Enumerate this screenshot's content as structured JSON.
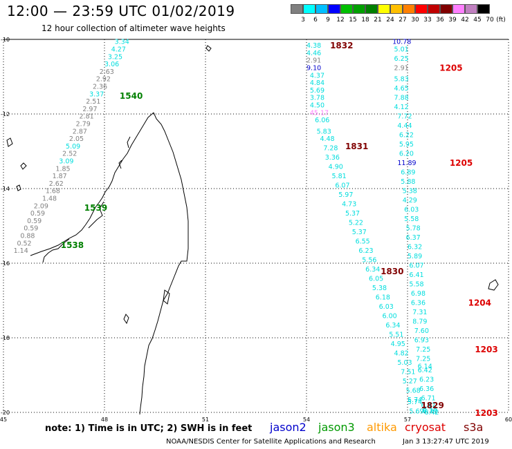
{
  "header": {
    "title": "12:00 — 23:59 UTC 01/02/2019",
    "subtitle": "12 hour collection of altimeter wave heights"
  },
  "scale": {
    "unit_label": "(ft)",
    "swatches": [
      {
        "label": "3",
        "color": "#808080"
      },
      {
        "label": "6",
        "color": "#00ffff"
      },
      {
        "label": "9",
        "color": "#00bfff"
      },
      {
        "label": "12",
        "color": "#0000ff"
      },
      {
        "label": "15",
        "color": "#00c000"
      },
      {
        "label": "18",
        "color": "#00a000"
      },
      {
        "label": "21",
        "color": "#008000"
      },
      {
        "label": "24",
        "color": "#ffff00"
      },
      {
        "label": "27",
        "color": "#ffc000"
      },
      {
        "label": "30",
        "color": "#ff8000"
      },
      {
        "label": "33",
        "color": "#ff0000"
      },
      {
        "label": "36",
        "color": "#c00000"
      },
      {
        "label": "39",
        "color": "#800000"
      },
      {
        "label": "42",
        "color": "#ff80ff"
      },
      {
        "label": "45",
        "color": "#c080c0"
      },
      {
        "label": "70",
        "color": "#000000"
      }
    ]
  },
  "map": {
    "lon_labels": [
      "45",
      "48",
      "51",
      "54",
      "57",
      "60"
    ],
    "lat_labels": [
      "-10",
      "-12",
      "-14",
      "-16",
      "-18",
      "-20"
    ],
    "passes": [
      {
        "satellite": "jason3",
        "time_labels": [
          {
            "text": "1540",
            "lon": 48.45,
            "lat": -11.5
          },
          {
            "text": "1539",
            "lon": 47.4,
            "lat": -14.5
          },
          {
            "text": "1538",
            "lon": 46.7,
            "lat": -15.5
          }
        ],
        "obs": [
          {
            "v": "3.34",
            "c": "#00dddd",
            "lon": 48.3,
            "lat": -10.05
          },
          {
            "v": "4.27",
            "c": "#00dddd",
            "lon": 48.2,
            "lat": -10.25
          },
          {
            "v": "3.25",
            "c": "#00dddd",
            "lon": 48.1,
            "lat": -10.45
          },
          {
            "v": "3.06",
            "c": "#00dddd",
            "lon": 48.0,
            "lat": -10.65
          },
          {
            "v": "2.63",
            "c": "#808080",
            "lon": 47.85,
            "lat": -10.85
          },
          {
            "v": "2.92",
            "c": "#808080",
            "lon": 47.75,
            "lat": -11.05
          },
          {
            "v": "2.36",
            "c": "#808080",
            "lon": 47.65,
            "lat": -11.25
          },
          {
            "v": "3.37",
            "c": "#00dddd",
            "lon": 47.55,
            "lat": -11.45
          },
          {
            "v": "2.51",
            "c": "#808080",
            "lon": 47.45,
            "lat": -11.65
          },
          {
            "v": "2.97",
            "c": "#808080",
            "lon": 47.35,
            "lat": -11.85
          },
          {
            "v": "2.81",
            "c": "#808080",
            "lon": 47.25,
            "lat": -12.05
          },
          {
            "v": "2.79",
            "c": "#808080",
            "lon": 47.15,
            "lat": -12.25
          },
          {
            "v": "2.87",
            "c": "#808080",
            "lon": 47.05,
            "lat": -12.45
          },
          {
            "v": "2.05",
            "c": "#808080",
            "lon": 46.95,
            "lat": -12.65
          },
          {
            "v": "5.09",
            "c": "#00dddd",
            "lon": 46.85,
            "lat": -12.85
          },
          {
            "v": "2.52",
            "c": "#808080",
            "lon": 46.75,
            "lat": -13.05
          },
          {
            "v": "3.09",
            "c": "#00dddd",
            "lon": 46.65,
            "lat": -13.25
          },
          {
            "v": "1.85",
            "c": "#808080",
            "lon": 46.55,
            "lat": -13.45
          },
          {
            "v": "1.87",
            "c": "#808080",
            "lon": 46.45,
            "lat": -13.65
          },
          {
            "v": "2.62",
            "c": "#808080",
            "lon": 46.35,
            "lat": -13.85
          },
          {
            "v": "1.68",
            "c": "#808080",
            "lon": 46.25,
            "lat": -14.05
          },
          {
            "v": "1.48",
            "c": "#808080",
            "lon": 46.15,
            "lat": -14.25
          },
          {
            "v": "2.09",
            "c": "#808080",
            "lon": 45.9,
            "lat": -14.45
          },
          {
            "v": "0.59",
            "c": "#808080",
            "lon": 45.8,
            "lat": -14.65
          },
          {
            "v": "0.59",
            "c": "#808080",
            "lon": 45.7,
            "lat": -14.85
          },
          {
            "v": "0.59",
            "c": "#808080",
            "lon": 45.6,
            "lat": -15.05
          },
          {
            "v": "0.88",
            "c": "#808080",
            "lon": 45.5,
            "lat": -15.25
          },
          {
            "v": "0.52",
            "c": "#808080",
            "lon": 45.4,
            "lat": -15.45
          },
          {
            "v": "1.14",
            "c": "#808080",
            "lon": 45.3,
            "lat": -15.65
          }
        ]
      },
      {
        "satellite": "cryosat",
        "time_labels": [
          {
            "text": "1832",
            "lon": 54.7,
            "lat": -10.15
          },
          {
            "text": "1831",
            "lon": 55.15,
            "lat": -12.85
          },
          {
            "text": "1830",
            "lon": 56.2,
            "lat": -16.2
          },
          {
            "text": "1829",
            "lon": 57.4,
            "lat": -19.8
          }
        ],
        "obs": [
          {
            "v": "4.38",
            "c": "#00dddd",
            "lon": 54.0,
            "lat": -10.15
          },
          {
            "v": "4.46",
            "c": "#00dddd",
            "lon": 54.0,
            "lat": -10.35
          },
          {
            "v": "2.91",
            "c": "#808080",
            "lon": 54.0,
            "lat": -10.55
          },
          {
            "v": "9.10",
            "c": "#0000cc",
            "lon": 54.0,
            "lat": -10.75
          },
          {
            "v": "4.37",
            "c": "#00dddd",
            "lon": 54.1,
            "lat": -10.95
          },
          {
            "v": "4.84",
            "c": "#00dddd",
            "lon": 54.1,
            "lat": -11.15
          },
          {
            "v": "5.69",
            "c": "#00dddd",
            "lon": 54.1,
            "lat": -11.35
          },
          {
            "v": "3.78",
            "c": "#00dddd",
            "lon": 54.1,
            "lat": -11.55
          },
          {
            "v": "4.50",
            "c": "#00dddd",
            "lon": 54.1,
            "lat": -11.75
          },
          {
            "v": "45.17",
            "c": "#ff80ff",
            "lon": 54.1,
            "lat": -11.95
          },
          {
            "v": "6.06",
            "c": "#00dddd",
            "lon": 54.25,
            "lat": -12.15
          },
          {
            "v": "5.83",
            "c": "#00dddd",
            "lon": 54.3,
            "lat": -12.45
          },
          {
            "v": "4.48",
            "c": "#00dddd",
            "lon": 54.4,
            "lat": -12.65
          },
          {
            "v": "7.28",
            "c": "#00dddd",
            "lon": 54.5,
            "lat": -12.9
          },
          {
            "v": "3.36",
            "c": "#00dddd",
            "lon": 54.55,
            "lat": -13.15
          },
          {
            "v": "4.90",
            "c": "#00dddd",
            "lon": 54.65,
            "lat": -13.4
          },
          {
            "v": "5.81",
            "c": "#00dddd",
            "lon": 54.75,
            "lat": -13.65
          },
          {
            "v": "6.07",
            "c": "#00dddd",
            "lon": 54.85,
            "lat": -13.9
          },
          {
            "v": "5.97",
            "c": "#00dddd",
            "lon": 54.95,
            "lat": -14.15
          },
          {
            "v": "4.73",
            "c": "#00dddd",
            "lon": 55.05,
            "lat": -14.4
          },
          {
            "v": "5.37",
            "c": "#00dddd",
            "lon": 55.15,
            "lat": -14.65
          },
          {
            "v": "5.22",
            "c": "#00dddd",
            "lon": 55.25,
            "lat": -14.9
          },
          {
            "v": "5.37",
            "c": "#00dddd",
            "lon": 55.35,
            "lat": -15.15
          },
          {
            "v": "6.55",
            "c": "#00dddd",
            "lon": 55.45,
            "lat": -15.4
          },
          {
            "v": "6.23",
            "c": "#00dddd",
            "lon": 55.55,
            "lat": -15.65
          },
          {
            "v": "5.56",
            "c": "#00dddd",
            "lon": 55.65,
            "lat": -15.9
          },
          {
            "v": "6.34",
            "c": "#00dddd",
            "lon": 55.75,
            "lat": -16.15
          },
          {
            "v": "6.05",
            "c": "#00dddd",
            "lon": 55.85,
            "lat": -16.4
          },
          {
            "v": "5.38",
            "c": "#00dddd",
            "lon": 55.95,
            "lat": -16.65
          },
          {
            "v": "6.18",
            "c": "#00dddd",
            "lon": 56.05,
            "lat": -16.9
          },
          {
            "v": "6.03",
            "c": "#00dddd",
            "lon": 56.15,
            "lat": -17.15
          },
          {
            "v": "6.00",
            "c": "#00dddd",
            "lon": 56.25,
            "lat": -17.4
          },
          {
            "v": "6.34",
            "c": "#00dddd",
            "lon": 56.35,
            "lat": -17.65
          },
          {
            "v": "5.51",
            "c": "#00dddd",
            "lon": 56.45,
            "lat": -17.9
          },
          {
            "v": "4.95",
            "c": "#00dddd",
            "lon": 56.5,
            "lat": -18.15
          },
          {
            "v": "4.82",
            "c": "#00dddd",
            "lon": 56.6,
            "lat": -18.4
          },
          {
            "v": "5.03",
            "c": "#00dddd",
            "lon": 56.7,
            "lat": -18.65
          },
          {
            "v": "7.51",
            "c": "#00dddd",
            "lon": 56.8,
            "lat": -18.9
          },
          {
            "v": "5.27",
            "c": "#00dddd",
            "lon": 56.85,
            "lat": -19.15
          },
          {
            "v": "5.68",
            "c": "#00dddd",
            "lon": 56.95,
            "lat": -19.4
          },
          {
            "v": "5.74",
            "c": "#00dddd",
            "lon": 57.0,
            "lat": -19.65
          },
          {
            "v": "5.74",
            "c": "#00dddd",
            "lon": 57.0,
            "lat": -19.7
          },
          {
            "v": "5.69",
            "c": "#00dddd",
            "lon": 57.05,
            "lat": -19.95
          }
        ]
      },
      {
        "satellite": "s3a",
        "time_labels": [
          {
            "text": "1205",
            "lon": 57.95,
            "lat": -10.75
          },
          {
            "text": "1205",
            "lon": 58.25,
            "lat": -13.3
          },
          {
            "text": "1204",
            "lon": 58.8,
            "lat": -17.05
          },
          {
            "text": "1203",
            "lon": 59.0,
            "lat": -18.3
          },
          {
            "text": "1203",
            "lon": 59.0,
            "lat": -20.0
          }
        ],
        "obs": [
          {
            "v": "10.78",
            "c": "#0000cc",
            "lon": 56.55,
            "lat": -10.05
          },
          {
            "v": "5.01",
            "c": "#00dddd",
            "lon": 56.6,
            "lat": -10.25
          },
          {
            "v": "6.25",
            "c": "#00dddd",
            "lon": 56.6,
            "lat": -10.5
          },
          {
            "v": "2.91",
            "c": "#808080",
            "lon": 56.6,
            "lat": -10.75
          },
          {
            "v": "5.83",
            "c": "#00dddd",
            "lon": 56.6,
            "lat": -11.05
          },
          {
            "v": "4.65",
            "c": "#00dddd",
            "lon": 56.6,
            "lat": -11.3
          },
          {
            "v": "7.88",
            "c": "#00dddd",
            "lon": 56.6,
            "lat": -11.55
          },
          {
            "v": "4.12",
            "c": "#00dddd",
            "lon": 56.6,
            "lat": -11.8
          },
          {
            "v": "7.72",
            "c": "#00dddd",
            "lon": 56.7,
            "lat": -12.05
          },
          {
            "v": "4.44",
            "c": "#00dddd",
            "lon": 56.7,
            "lat": -12.3
          },
          {
            "v": "6.22",
            "c": "#00dddd",
            "lon": 56.75,
            "lat": -12.55
          },
          {
            "v": "5.95",
            "c": "#00dddd",
            "lon": 56.75,
            "lat": -12.8
          },
          {
            "v": "6.20",
            "c": "#00dddd",
            "lon": 56.75,
            "lat": -13.05
          },
          {
            "v": "11.89",
            "c": "#0000cc",
            "lon": 56.7,
            "lat": -13.3
          },
          {
            "v": "6.89",
            "c": "#00dddd",
            "lon": 56.8,
            "lat": -13.55
          },
          {
            "v": "5.88",
            "c": "#00dddd",
            "lon": 56.8,
            "lat": -13.8
          },
          {
            "v": "5.38",
            "c": "#00dddd",
            "lon": 56.85,
            "lat": -14.05
          },
          {
            "v": "4.29",
            "c": "#00dddd",
            "lon": 56.85,
            "lat": -14.3
          },
          {
            "v": "6.03",
            "c": "#00dddd",
            "lon": 56.9,
            "lat": -14.55
          },
          {
            "v": "5.58",
            "c": "#00dddd",
            "lon": 56.9,
            "lat": -14.8
          },
          {
            "v": "5.78",
            "c": "#00dddd",
            "lon": 56.95,
            "lat": -15.05
          },
          {
            "v": "6.37",
            "c": "#00dddd",
            "lon": 56.95,
            "lat": -15.3
          },
          {
            "v": "6.32",
            "c": "#00dddd",
            "lon": 57.0,
            "lat": -15.55
          },
          {
            "v": "5.89",
            "c": "#00dddd",
            "lon": 57.0,
            "lat": -15.8
          },
          {
            "v": "6.07",
            "c": "#00dddd",
            "lon": 57.05,
            "lat": -16.05
          },
          {
            "v": "6.41",
            "c": "#00dddd",
            "lon": 57.05,
            "lat": -16.3
          },
          {
            "v": "5.58",
            "c": "#00dddd",
            "lon": 57.05,
            "lat": -16.55
          },
          {
            "v": "6.98",
            "c": "#00dddd",
            "lon": 57.1,
            "lat": -16.8
          },
          {
            "v": "6.36",
            "c": "#00dddd",
            "lon": 57.1,
            "lat": -17.05
          },
          {
            "v": "7.31",
            "c": "#00dddd",
            "lon": 57.15,
            "lat": -17.3
          },
          {
            "v": "8.79",
            "c": "#00dddd",
            "lon": 57.15,
            "lat": -17.55
          },
          {
            "v": "7.60",
            "c": "#00dddd",
            "lon": 57.2,
            "lat": -17.8
          },
          {
            "v": "6.93",
            "c": "#00dddd",
            "lon": 57.2,
            "lat": -18.05
          },
          {
            "v": "7.25",
            "c": "#00dddd",
            "lon": 57.25,
            "lat": -18.3
          },
          {
            "v": "7.25",
            "c": "#00dddd",
            "lon": 57.25,
            "lat": -18.55
          },
          {
            "v": "6.14",
            "c": "#00dddd",
            "lon": 57.3,
            "lat": -18.75
          },
          {
            "v": "6.42",
            "c": "#00dddd",
            "lon": 57.3,
            "lat": -18.85
          },
          {
            "v": "6.23",
            "c": "#00dddd",
            "lon": 57.35,
            "lat": -19.1
          },
          {
            "v": "6.36",
            "c": "#00dddd",
            "lon": 57.35,
            "lat": -19.35
          },
          {
            "v": "6.71",
            "c": "#00dddd",
            "lon": 57.4,
            "lat": -19.6
          },
          {
            "v": "6.47",
            "c": "#00dddd",
            "lon": 57.4,
            "lat": -19.8
          },
          {
            "v": "6.18",
            "c": "#00dddd",
            "lon": 57.45,
            "lat": -19.9
          },
          {
            "v": "6.79",
            "c": "#00dddd",
            "lon": 57.45,
            "lat": -19.95
          },
          {
            "v": "6.42",
            "c": "#00dddd",
            "lon": 57.5,
            "lat": -19.98
          }
        ]
      }
    ]
  },
  "footer": {
    "note": "note: 1) Time is in UTC; 2) SWH is in feet",
    "satellites": [
      {
        "name": "jason2",
        "color": "#0000cc"
      },
      {
        "name": "jason3",
        "color": "#009900"
      },
      {
        "name": "altika",
        "color": "#ff9900"
      },
      {
        "name": "cryosat",
        "color": "#dd0000"
      },
      {
        "name": "s3a",
        "color": "#800000"
      }
    ],
    "credit": "NOAA/NESDIS Center for Satellite Applications and Research",
    "timestamp": "Jan  3 13:27:47 UTC 2019"
  },
  "colors": {
    "jason3_time": "#008000",
    "cryosat_time": "#800000",
    "s3a_time": "#dd0000"
  }
}
